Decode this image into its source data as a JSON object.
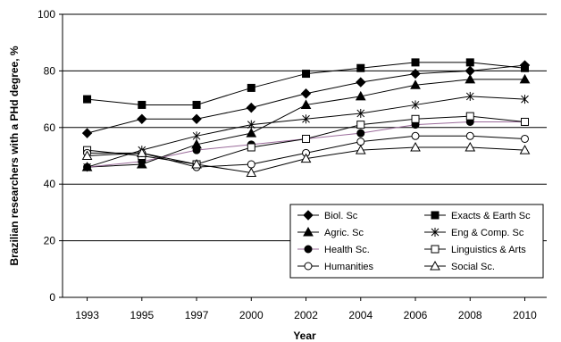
{
  "chart_data": {
    "type": "line",
    "title": "",
    "xlabel": "Year",
    "ylabel": "Brazilian researchers with a PHd degree, %",
    "ylim": [
      0,
      100
    ],
    "y_ticks": [
      "0",
      "20",
      "40",
      "60",
      "80",
      "100"
    ],
    "categories": [
      "1993",
      "1995",
      "1997",
      "2000",
      "2002",
      "2004",
      "2006",
      "2008",
      "2010"
    ],
    "grid": "horizontal major gridlines",
    "legend_position": "bottom-right inside plot, two columns",
    "series": [
      {
        "name": "Biol. Sc",
        "marker": "diamond-filled",
        "color": "#000000",
        "values": [
          58,
          63,
          63,
          67,
          72,
          76,
          79,
          80,
          82
        ]
      },
      {
        "name": "Exacts & Earth Sc",
        "marker": "square-filled",
        "color": "#000000",
        "values": [
          70,
          68,
          68,
          74,
          79,
          81,
          83,
          83,
          81
        ]
      },
      {
        "name": "Agric. Sc",
        "marker": "triangle-filled",
        "color": "#000000",
        "values": [
          46,
          47,
          54,
          58,
          68,
          71,
          75,
          77,
          77
        ]
      },
      {
        "name": "Eng & Comp. Sc",
        "marker": "star",
        "color": "#000000",
        "values": [
          46,
          52,
          57,
          61,
          63,
          65,
          68,
          71,
          70
        ]
      },
      {
        "name": "Health Sc.",
        "marker": "circle-filled",
        "color": "#9a6b9a",
        "values": [
          46,
          48,
          52,
          54,
          56,
          58,
          61,
          62,
          62
        ]
      },
      {
        "name": "Linguistics & Arts",
        "marker": "square-open",
        "color": "#000000",
        "values": [
          52,
          50,
          47,
          53,
          56,
          61,
          63,
          64,
          62
        ]
      },
      {
        "name": "Humanities",
        "marker": "circle-open",
        "color": "#000000",
        "values": [
          51,
          51,
          46,
          47,
          51,
          55,
          57,
          57,
          56
        ]
      },
      {
        "name": "Social Sc.",
        "marker": "triangle-open",
        "color": "#000000",
        "values": [
          50,
          51,
          47,
          44,
          49,
          52,
          53,
          53,
          52
        ]
      }
    ]
  }
}
